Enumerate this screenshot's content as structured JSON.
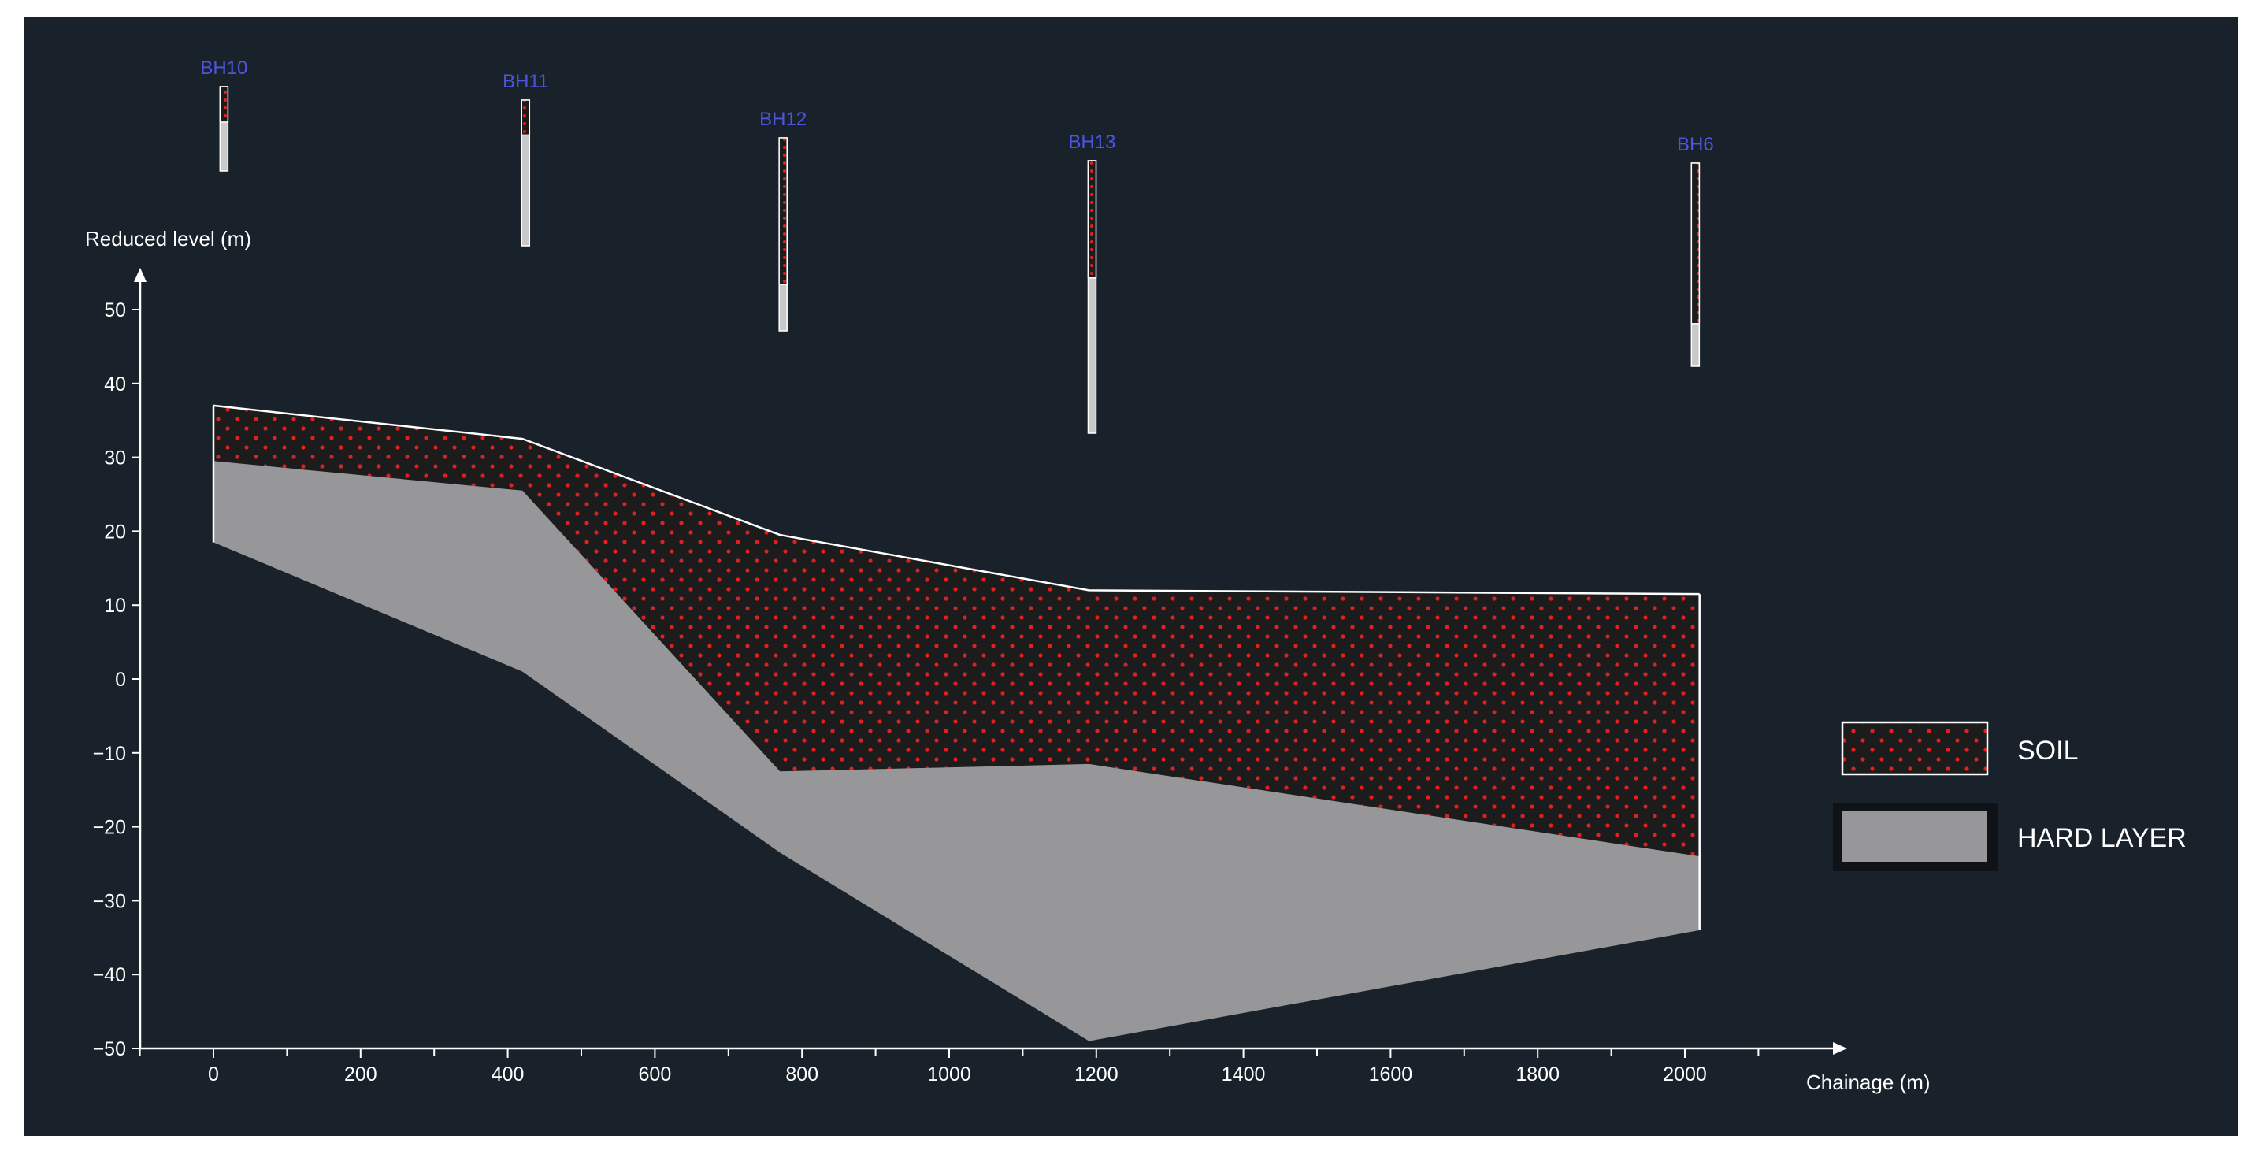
{
  "chart_data": {
    "type": "area",
    "xlabel": "Chainage (m)",
    "ylabel": "Reduced level (m)",
    "xlim": [
      -100,
      2200
    ],
    "ylim": [
      -50,
      55
    ],
    "xticks": [
      0,
      200,
      400,
      600,
      800,
      1000,
      1200,
      1400,
      1600,
      1800,
      2000
    ],
    "yticks": [
      50,
      40,
      30,
      20,
      10,
      0,
      -10,
      -20,
      -30,
      -40,
      -50
    ],
    "series": [
      {
        "name": "SOIL",
        "color": "#1c1c1c",
        "pattern_color": "#e02020",
        "top": [
          [
            0,
            37
          ],
          [
            420,
            32.5
          ],
          [
            770,
            19.5
          ],
          [
            1190,
            12
          ],
          [
            2020,
            11.5
          ]
        ],
        "bottom": [
          [
            0,
            29.5
          ],
          [
            420,
            25.5
          ],
          [
            770,
            -12.5
          ],
          [
            1190,
            -11.5
          ],
          [
            2020,
            -24
          ]
        ]
      },
      {
        "name": "HARD LAYER",
        "color": "#97979a",
        "top": [
          [
            0,
            29.5
          ],
          [
            420,
            25.5
          ],
          [
            770,
            -12.5
          ],
          [
            1190,
            -11.5
          ],
          [
            2020,
            -24
          ]
        ],
        "bottom": [
          [
            0,
            18.5
          ],
          [
            420,
            1
          ],
          [
            770,
            -23.5
          ],
          [
            1190,
            -49
          ],
          [
            2020,
            -34
          ]
        ]
      }
    ],
    "boreholes": [
      {
        "name": "BH10",
        "chainage": 10,
        "soil_fraction": 0.42
      },
      {
        "name": "BH11",
        "chainage": 420,
        "soil_fraction": 0.24
      },
      {
        "name": "BH12",
        "chainage": 770,
        "soil_fraction": 0.76
      },
      {
        "name": "BH13",
        "chainage": 1190,
        "soil_fraction": 0.43
      },
      {
        "name": "BH6",
        "chainage": 2010,
        "soil_fraction": 0.79
      }
    ],
    "legend": {
      "placement": "right",
      "items": [
        {
          "label": "SOIL"
        },
        {
          "label": "HARD LAYER"
        }
      ]
    }
  }
}
